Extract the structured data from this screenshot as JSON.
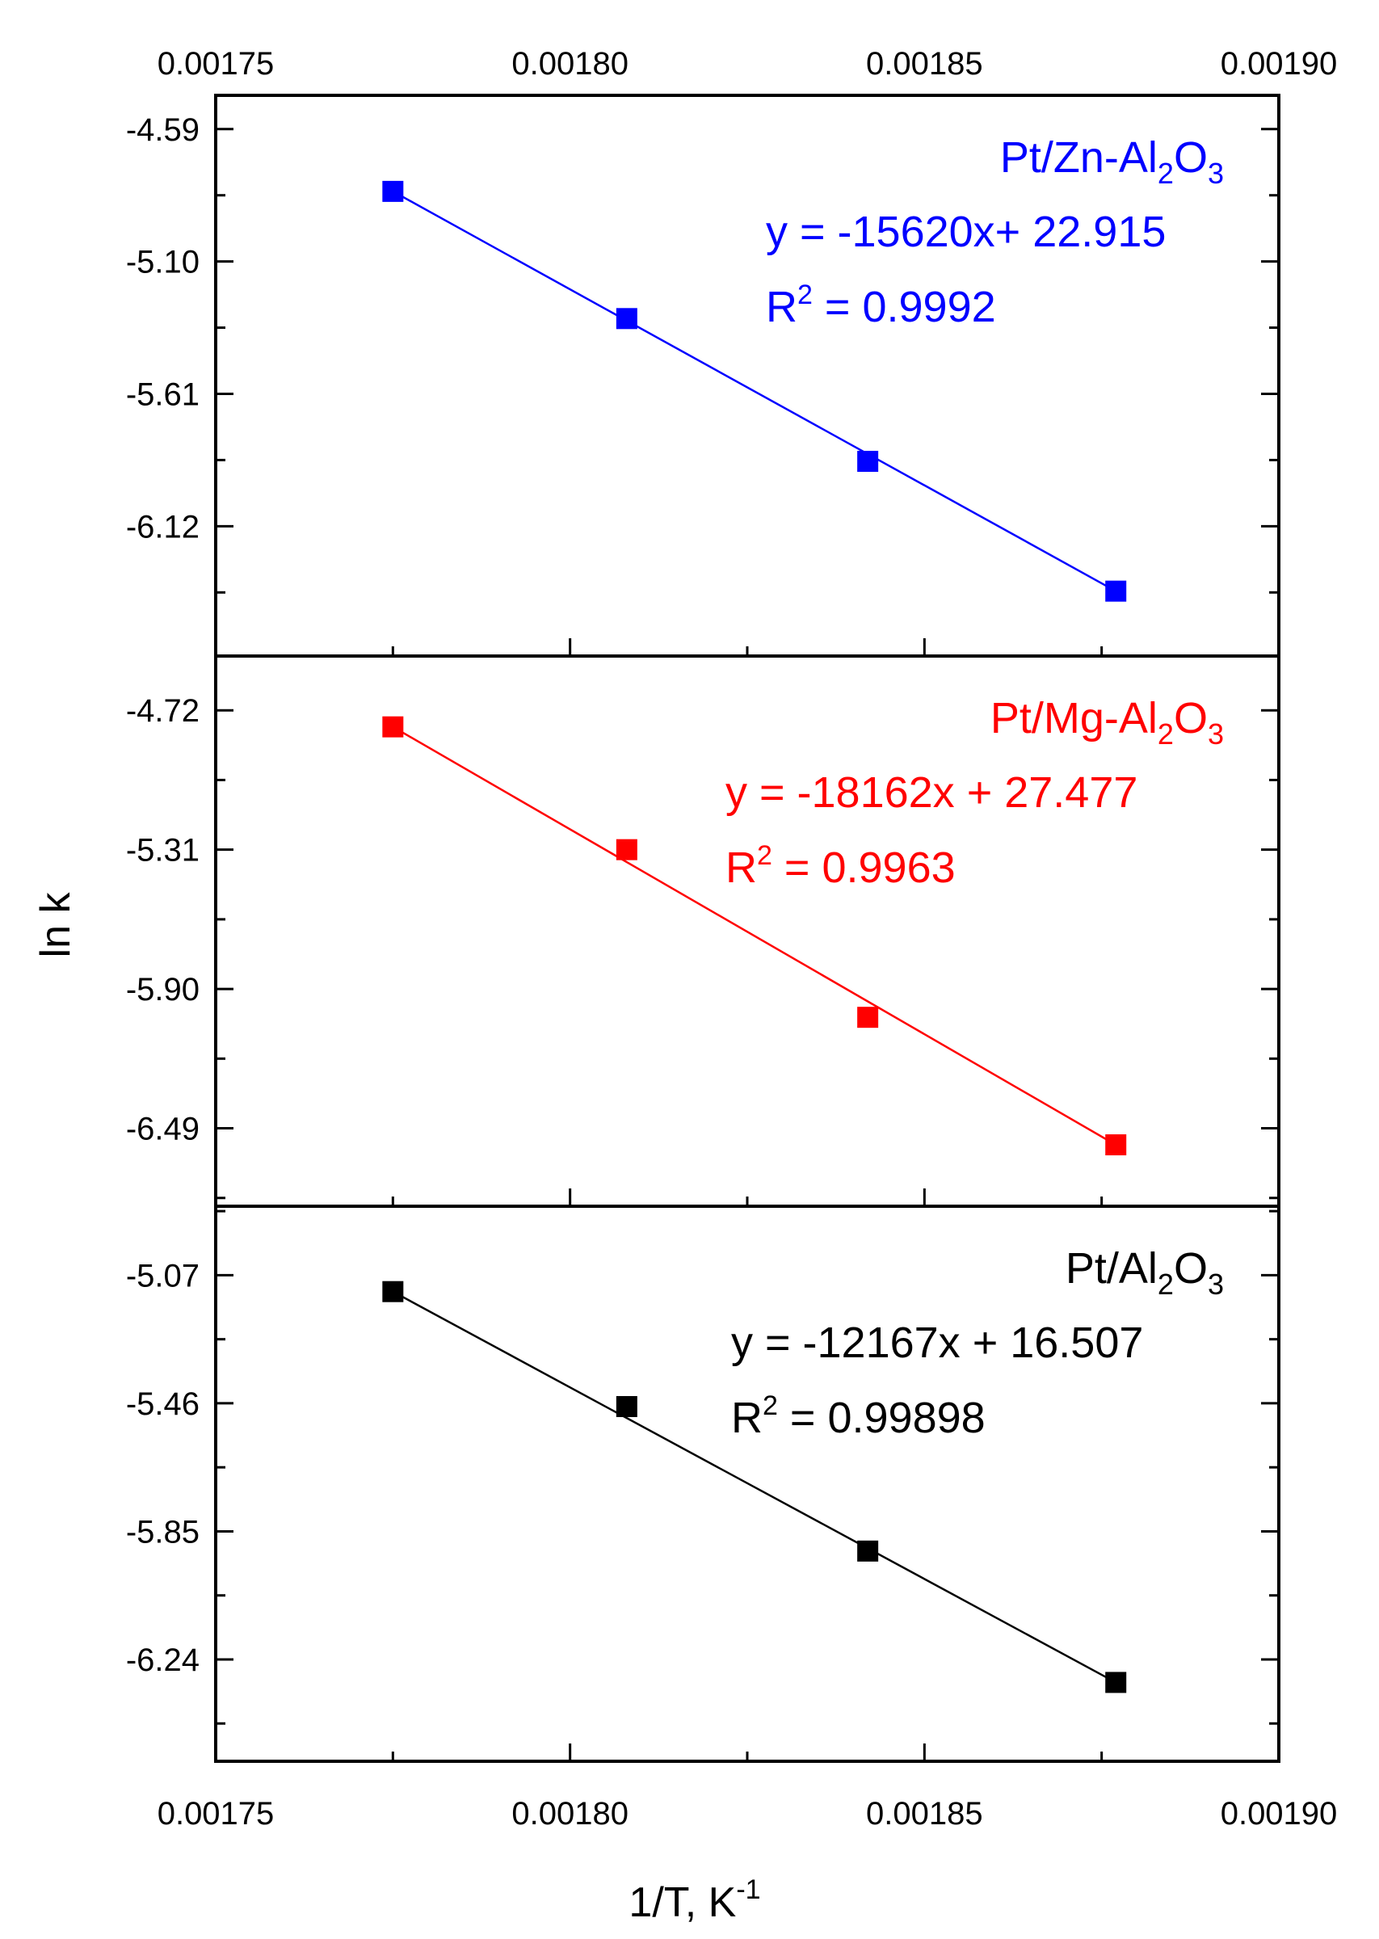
{
  "chart_data": {
    "type": "scatter",
    "layout": "stacked-panels",
    "xlabel": "1/T, K",
    "xlabel_sup": "-1",
    "ylabel": "ln k",
    "xlim": [
      0.00175,
      0.0019
    ],
    "x_ticks": [
      "0.00175",
      "0.00180",
      "0.00185",
      "0.00190"
    ],
    "x_tick_values": [
      0.00175,
      0.0018,
      0.00185,
      0.0019
    ],
    "grid": false,
    "panels": [
      {
        "name": "Pt/Zn-Al2O3",
        "color": "#0000ff",
        "ylim": [
          -6.62,
          -4.46
        ],
        "y_ticks": [
          "-4.59",
          "-5.10",
          "-5.61",
          "-6.12"
        ],
        "y_tick_values": [
          -4.59,
          -5.1,
          -5.61,
          -6.12
        ],
        "x": [
          0.001775,
          0.001808,
          0.001842,
          0.001877
        ],
        "y": [
          -4.83,
          -5.32,
          -5.87,
          -6.37
        ],
        "fit": {
          "slope": -15620,
          "intercept": 22.915
        },
        "label_parts": [
          "Pt/Zn-Al",
          "2",
          "O",
          "3"
        ],
        "equation": "y = -15620x+ 22.915",
        "r2_prefix": "R",
        "r2_sup": "2",
        "r2_value": " = 0.9992"
      },
      {
        "name": "Pt/Mg-Al2O3",
        "color": "#ff0000",
        "ylim": [
          -6.82,
          -4.49
        ],
        "y_ticks": [
          "-4.72",
          "-5.31",
          "-5.90",
          "-6.49"
        ],
        "y_tick_values": [
          -4.72,
          -5.31,
          -5.9,
          -6.49
        ],
        "x": [
          0.001775,
          0.001808,
          0.001842,
          0.001877
        ],
        "y": [
          -4.79,
          -5.31,
          -6.02,
          -6.56
        ],
        "fit": {
          "slope": -18162,
          "intercept": 27.477
        },
        "label_parts": [
          "Pt/Mg-Al",
          "2",
          "O",
          "3"
        ],
        "equation": "y = -18162x + 27.477",
        "r2_prefix": "R",
        "r2_sup": "2",
        "r2_value": " = 0.9963"
      },
      {
        "name": "Pt/Al2O3",
        "color": "#000000",
        "ylim": [
          -6.55,
          -4.86
        ],
        "y_ticks": [
          "-5.07",
          "-5.46",
          "-5.85",
          "-6.24"
        ],
        "y_tick_values": [
          -5.07,
          -5.46,
          -5.85,
          -6.24
        ],
        "x": [
          0.001775,
          0.001808,
          0.001842,
          0.001877
        ],
        "y": [
          -5.12,
          -5.47,
          -5.91,
          -6.31
        ],
        "fit": {
          "slope": -12167,
          "intercept": 16.507
        },
        "label_parts": [
          "Pt/Al",
          "2",
          "O",
          "3"
        ],
        "equation": "y = -12167x + 16.507",
        "r2_prefix": "R",
        "r2_sup": "2",
        "r2_value": " = 0.99898"
      }
    ]
  }
}
